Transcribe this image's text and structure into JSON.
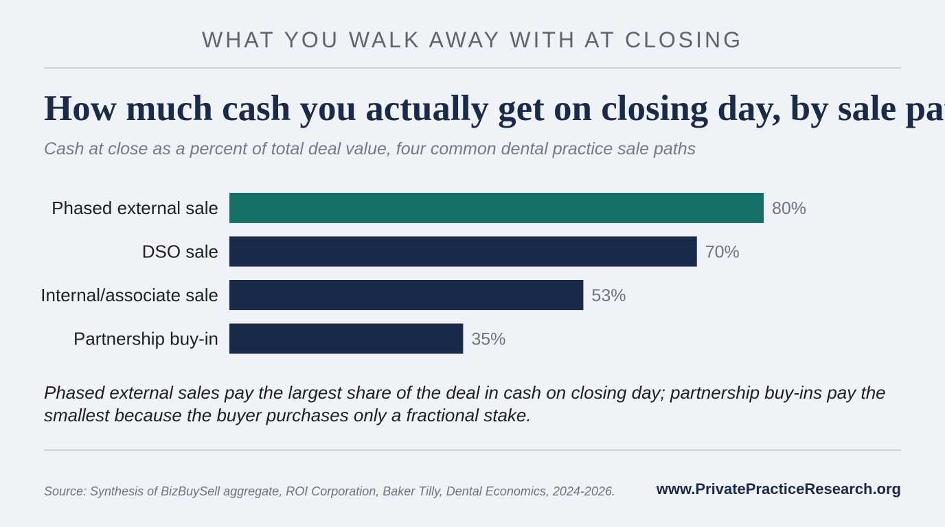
{
  "header": {
    "kicker": "WHAT YOU WALK AWAY WITH AT CLOSING",
    "title": "How much cash you actually get on closing day, by sale path",
    "subtitle": "Cash at close as a percent of total deal value, four common dental practice sale paths"
  },
  "chart_data": {
    "type": "bar",
    "orientation": "horizontal",
    "categories": [
      "Phased external sale",
      "DSO sale",
      "Internal/associate sale",
      "Partnership buy-in"
    ],
    "values": [
      80,
      70,
      53,
      35
    ],
    "value_labels": [
      "80%",
      "70%",
      "53%",
      "35%"
    ],
    "unit": "%",
    "xlim": [
      0,
      100
    ],
    "grid": false,
    "colors": {
      "highlight": "#157068",
      "default": "#1b2a4c",
      "label": "#6e747e",
      "category": "#1d1f24"
    },
    "highlight_index": 0
  },
  "takeaway": "Phased external sales pay the largest share of the deal in cash on closing day; partnership buy-ins pay the smallest because the buyer purchases only a fractional stake.",
  "footer": {
    "source": "Source: Synthesis of BizBuySell aggregate, ROI Corporation, Baker Tilly, Dental Economics, 2024-2026.",
    "url": "www.PrivatePracticeResearch.org"
  }
}
